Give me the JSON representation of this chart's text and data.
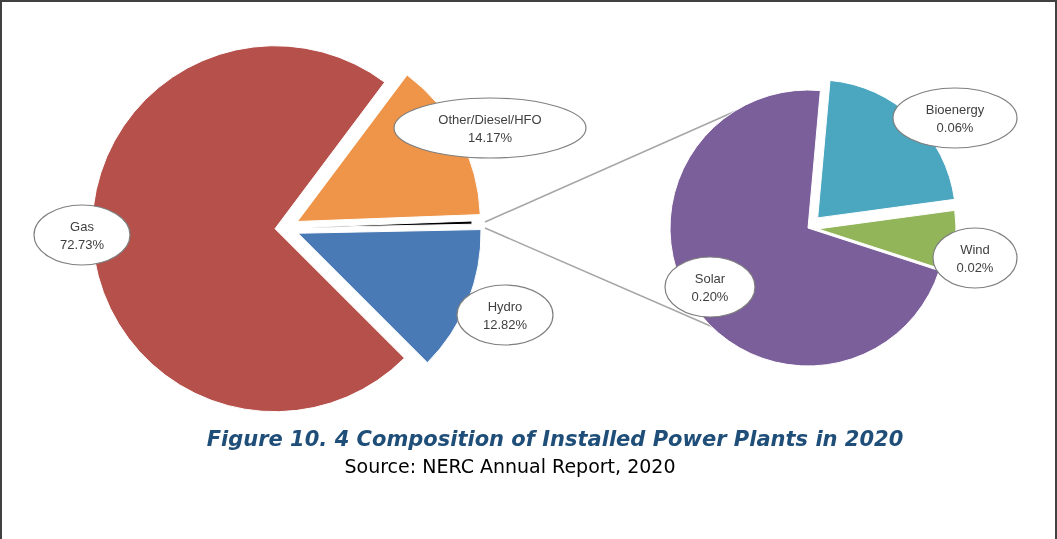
{
  "chart_data": [
    {
      "type": "pie",
      "title": "Figure 10. 4 Composition of Installed Power Plants in 2020",
      "annotations": [
        "Source: NERC Annual Report, 2020"
      ],
      "categories": [
        "Gas",
        "Other/Diesel/HFO",
        null,
        "Hydro"
      ],
      "values": [
        72.73,
        14.17,
        0.28,
        12.82
      ],
      "value_labels": [
        "72.73%",
        "14.17%",
        null,
        "12.82%"
      ],
      "colors": [
        "#b5504b",
        "#ef9549",
        "#000000",
        "#4a7ab5"
      ]
    },
    {
      "type": "pie",
      "categories": [
        "Solar",
        "Bioenergy",
        "Wind"
      ],
      "values": [
        0.2,
        0.06,
        0.02
      ],
      "value_labels": [
        "0.20%",
        "0.06%",
        "0.02%"
      ],
      "colors": [
        "#7b5f9b",
        "#4ba6c0",
        "#92b55a"
      ]
    }
  ]
}
